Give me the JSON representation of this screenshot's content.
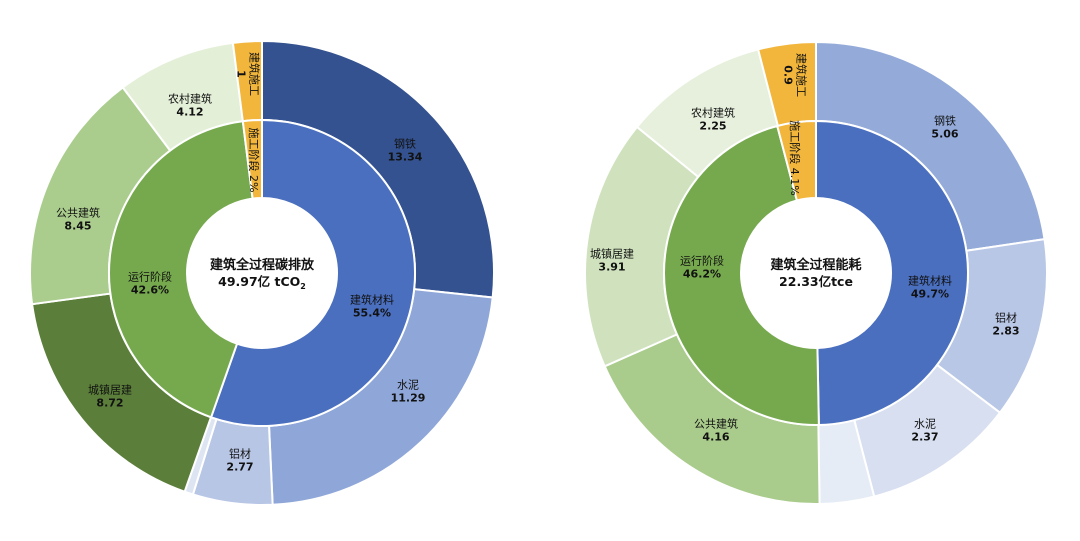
{
  "chart_data": [
    {
      "type": "sunburst",
      "center_title": "建筑全过程碳排放",
      "center_value": "49.97亿 tCO",
      "center_value_sub": "2",
      "inner": [
        {
          "name": "建筑材料",
          "pct": "55.4%",
          "value": 55.4,
          "color": "#4a6fbf"
        },
        {
          "name": "运行阶段",
          "pct": "42.6%",
          "value": 42.6,
          "color": "#76a94e"
        },
        {
          "name": "施工阶段",
          "pct": "2%",
          "value": 2.0,
          "color": "#f2b63c"
        }
      ],
      "outer": [
        {
          "name": "钢铁",
          "value_label": "13.34",
          "value": 13.34,
          "color": "#34528f"
        },
        {
          "name": "水泥",
          "value_label": "11.29",
          "value": 11.29,
          "color": "#8fa7d8"
        },
        {
          "name": "铝材",
          "value_label": "2.77",
          "value": 2.77,
          "color": "#b8c6e6"
        },
        {
          "name": "",
          "value_label": "",
          "value": 0.3,
          "color": "#dde4f2"
        },
        {
          "name": "城镇居建",
          "value_label": "8.72",
          "value": 8.72,
          "color": "#5b7f3a"
        },
        {
          "name": "公共建筑",
          "value_label": "8.45",
          "value": 8.45,
          "color": "#aacd8e"
        },
        {
          "name": "农村建筑",
          "value_label": "4.12",
          "value": 4.12,
          "color": "#e4efd8"
        },
        {
          "name": "建筑施工",
          "value_label": "1",
          "value": 1.0,
          "color": "#f2b63c"
        }
      ]
    },
    {
      "type": "sunburst",
      "center_title": "建筑全过程能耗",
      "center_value": "22.33亿tce",
      "center_value_sub": "",
      "inner": [
        {
          "name": "建筑材料",
          "pct": "49.7%",
          "value": 49.7,
          "color": "#4a6fbf"
        },
        {
          "name": "运行阶段",
          "pct": "46.2%",
          "value": 46.2,
          "color": "#76a94e"
        },
        {
          "name": "施工阶段",
          "pct": "4.1%",
          "value": 4.1,
          "color": "#f2b63c"
        }
      ],
      "outer": [
        {
          "name": "钢铁",
          "value_label": "5.06",
          "value": 5.06,
          "color": "#94abda"
        },
        {
          "name": "铝材",
          "value_label": "2.83",
          "value": 2.83,
          "color": "#b9c7e6"
        },
        {
          "name": "水泥",
          "value_label": "2.37",
          "value": 2.37,
          "color": "#d7dff0"
        },
        {
          "name": "",
          "value_label": "",
          "value": 0.85,
          "color": "#e6ecf6"
        },
        {
          "name": "公共建筑",
          "value_label": "4.16",
          "value": 4.16,
          "color": "#a9cb8c"
        },
        {
          "name": "城镇居建",
          "value_label": "3.91",
          "value": 3.91,
          "color": "#cfe2bd"
        },
        {
          "name": "农村建筑",
          "value_label": "2.25",
          "value": 2.25,
          "color": "#e6f0dc"
        },
        {
          "name": "建筑施工",
          "value_label": "0.9",
          "value": 0.9,
          "color": "#f2b63c"
        }
      ]
    }
  ]
}
